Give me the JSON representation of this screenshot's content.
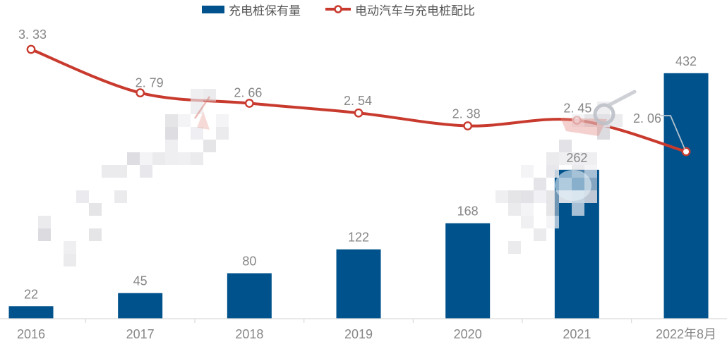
{
  "chart_data": {
    "type": "combo",
    "title": "",
    "categories": [
      "2016",
      "2017",
      "2018",
      "2019",
      "2020",
      "2021",
      "2022年8月"
    ],
    "series": [
      {
        "name": "充电桩保有量",
        "type": "bar",
        "values": [
          22,
          45,
          80,
          122,
          168,
          262,
          432
        ],
        "value_labels": [
          "22",
          "45",
          "80",
          "122",
          "168",
          "262",
          "432"
        ],
        "color": "#00528C"
      },
      {
        "name": "电动汽车与充电桩配比",
        "type": "line",
        "values": [
          3.33,
          2.79,
          2.66,
          2.54,
          2.38,
          2.45,
          2.06
        ],
        "value_labels": [
          "3. 33",
          "2. 79",
          "2. 66",
          "2. 54",
          "2. 38",
          "2. 45",
          "2. 06"
        ],
        "color": "#C93A2E",
        "marker": "open-circle"
      }
    ],
    "legend_position": "top-center",
    "grid": false,
    "background": "#ffffff",
    "value_label_color": "#878787",
    "axis_color": "#d9d9d9",
    "bar_axis_range": [
      0,
      560
    ],
    "line_axis_range": [
      1.99,
      3.42
    ]
  }
}
